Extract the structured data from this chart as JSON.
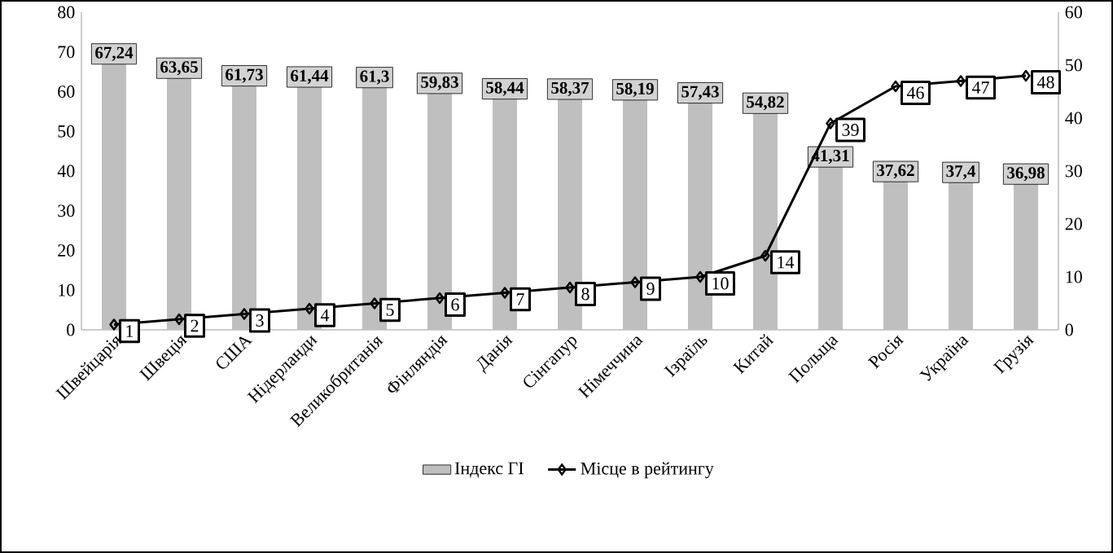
{
  "chart_data": {
    "type": "bar",
    "categories": [
      "Швейцарія",
      "Швеція",
      "США",
      "Нідерланди",
      "Великобританія",
      "Фінляндія",
      "Данія",
      "Сінгапур",
      "Німеччина",
      "Ізраїль",
      "Китай",
      "Польща",
      "Росія",
      "Україна",
      "Грузія"
    ],
    "series": [
      {
        "name": "Індекс ГІ",
        "color": "#bfbfbf",
        "values": [
          67.24,
          63.65,
          61.73,
          61.44,
          61.3,
          59.83,
          58.44,
          58.37,
          58.19,
          57.43,
          54.82,
          41.31,
          37.62,
          37.4,
          36.98
        ],
        "value_labels": [
          "67,24",
          "63,65",
          "61,73",
          "61,44",
          "61,3",
          "59,83",
          "58,44",
          "58,37",
          "58,19",
          "57,43",
          "54,82",
          "41,31",
          "37,62",
          "37,4",
          "36,98"
        ]
      },
      {
        "name": "Місце в рейтингу",
        "type": "line",
        "axis": "y2",
        "color": "#000000",
        "values": [
          1,
          2,
          3,
          4,
          5,
          6,
          7,
          8,
          9,
          10,
          14,
          39,
          46,
          47,
          48
        ],
        "value_labels": [
          "1",
          "2",
          "3",
          "4",
          "5",
          "6",
          "7",
          "8",
          "9",
          "10",
          "14",
          "39",
          "46",
          "47",
          "48"
        ]
      }
    ],
    "ylim": [
      0,
      80
    ],
    "yticks": [
      0,
      10,
      20,
      30,
      40,
      50,
      60,
      70,
      80
    ],
    "y2lim": [
      0,
      60
    ],
    "y2ticks": [
      0,
      10,
      20,
      30,
      40,
      50,
      60
    ],
    "legend": "bottom",
    "marker": "diamond"
  }
}
